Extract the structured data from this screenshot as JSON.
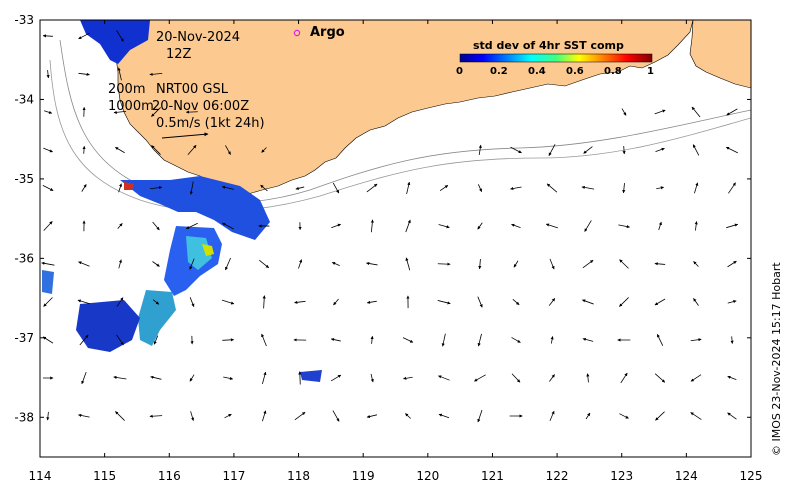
{
  "map": {
    "lon_range": [
      114,
      125
    ],
    "lat_range": [
      -38.5,
      -33
    ],
    "x_ticks": [
      "114",
      "115",
      "116",
      "117",
      "118",
      "119",
      "120",
      "121",
      "122",
      "123",
      "124",
      "125"
    ],
    "y_ticks": [
      "-33",
      "-34",
      "-35",
      "-36",
      "-37",
      "-38"
    ],
    "land_color": "#fcc990",
    "ocean_color": "#ffffff"
  },
  "annotations": {
    "date": "20-Nov-2024",
    "time": "12Z",
    "depth_200": "200m",
    "depth_1000": "1000m",
    "source": "NRT00 GSL",
    "source_time": "20-Nov 06:00Z",
    "scale_arrow": "0.5m/s (1kt 24h)",
    "argo_label": "Argo",
    "argo_color": "#e020e0"
  },
  "colorbar": {
    "title": "std dev of 4hr SST comp",
    "ticks": [
      "0",
      "0.2",
      "0.4",
      "0.6",
      "0.8",
      "1"
    ],
    "colormap": "jet"
  },
  "credit": "© IMOS 23-Nov-2024 15:17 Hobart"
}
